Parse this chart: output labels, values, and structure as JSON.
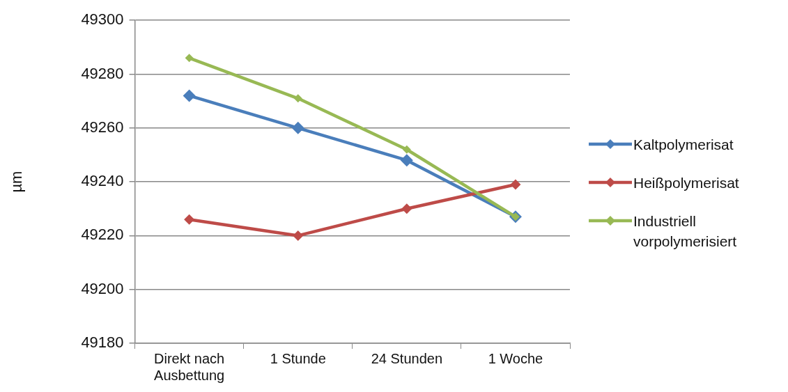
{
  "chart_data": {
    "type": "line",
    "ylabel": "µm",
    "categories": [
      "Direkt nach Ausbettung",
      "1 Stunde",
      "24 Stunden",
      "1 Woche"
    ],
    "series": [
      {
        "name": "Kaltpolymerisat",
        "color": "#4a7ebb",
        "values": [
          49272,
          49260,
          49248,
          49227
        ]
      },
      {
        "name": "Heißpolymerisat",
        "color": "#be4b48",
        "values": [
          49226,
          49220,
          49230,
          49239
        ]
      },
      {
        "name": "Industriell vorpolymerisiert",
        "color": "#98b954",
        "values": [
          49286,
          49271,
          49252,
          49227
        ]
      }
    ],
    "ylim": [
      49180,
      49300
    ],
    "yticks": [
      49180,
      49200,
      49220,
      49240,
      49260,
      49280,
      49300
    ],
    "grid": "y",
    "legend": "right",
    "marker": "diamond",
    "line_style": "solid"
  }
}
